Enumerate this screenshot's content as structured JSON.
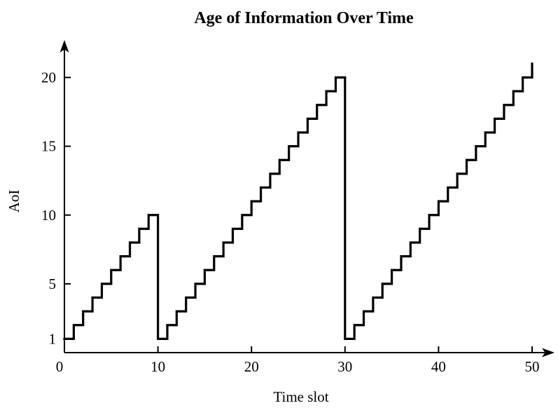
{
  "figure": {
    "background": "#ffffff",
    "line_color": "#000000",
    "text_color": "#000000"
  },
  "chart_data": {
    "type": "step",
    "title": "Age of Information Over Time",
    "xlabel": "Time slot",
    "ylabel": "AoI",
    "x_ticks": [
      0,
      10,
      20,
      30,
      40,
      50
    ],
    "y_ticks": [
      1,
      5,
      10,
      15,
      20
    ],
    "xlim": [
      0,
      52
    ],
    "ylim": [
      0,
      22.5
    ],
    "grid": false,
    "legend": null,
    "description": "AoI increases by 1 each time slot; resets to 1 at slots 10 and 30; final vertical rise to 21 at slot 50",
    "slot_values": [
      1,
      2,
      3,
      4,
      5,
      6,
      7,
      8,
      9,
      10,
      1,
      2,
      3,
      4,
      5,
      6,
      7,
      8,
      9,
      10,
      11,
      12,
      13,
      14,
      15,
      16,
      17,
      18,
      19,
      20,
      1,
      2,
      3,
      4,
      5,
      6,
      7,
      8,
      9,
      10,
      11,
      12,
      13,
      14,
      15,
      16,
      17,
      18,
      19,
      20
    ],
    "end_value": 21,
    "reset_times": [
      10,
      30
    ]
  }
}
